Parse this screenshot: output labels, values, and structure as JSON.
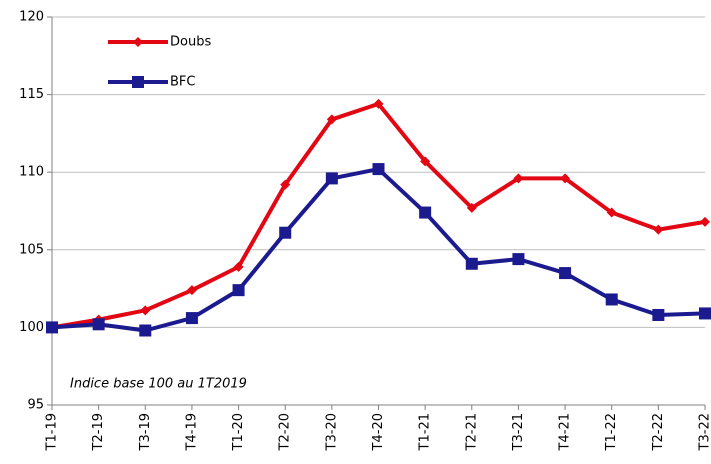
{
  "chart_data": {
    "type": "line",
    "categories": [
      "T1-19",
      "T2-19",
      "T3-19",
      "T4-19",
      "T1-20",
      "T2-20",
      "T3-20",
      "T4-20",
      "T1-21",
      "T2-21",
      "T3-21",
      "T4-21",
      "T1-22",
      "T2-22",
      "T3-22"
    ],
    "series": [
      {
        "name": "Doubs",
        "color": "#e30613",
        "marker": "diamond",
        "values": [
          100,
          100.5,
          101.1,
          102.4,
          103.9,
          109.2,
          113.4,
          114.4,
          110.7,
          107.7,
          109.6,
          109.6,
          107.4,
          106.3,
          106.8
        ]
      },
      {
        "name": "BFC",
        "color": "#1b1a8e",
        "marker": "square",
        "values": [
          100,
          100.2,
          99.8,
          100.6,
          102.4,
          106.1,
          109.6,
          110.2,
          107.4,
          104.1,
          104.4,
          103.5,
          101.8,
          100.8,
          100.9
        ]
      }
    ],
    "ylim": [
      95,
      120
    ],
    "yticks": [
      95,
      100,
      105,
      110,
      115,
      120
    ],
    "grid": true,
    "annotation": "Indice base 100 au 1T2019"
  }
}
